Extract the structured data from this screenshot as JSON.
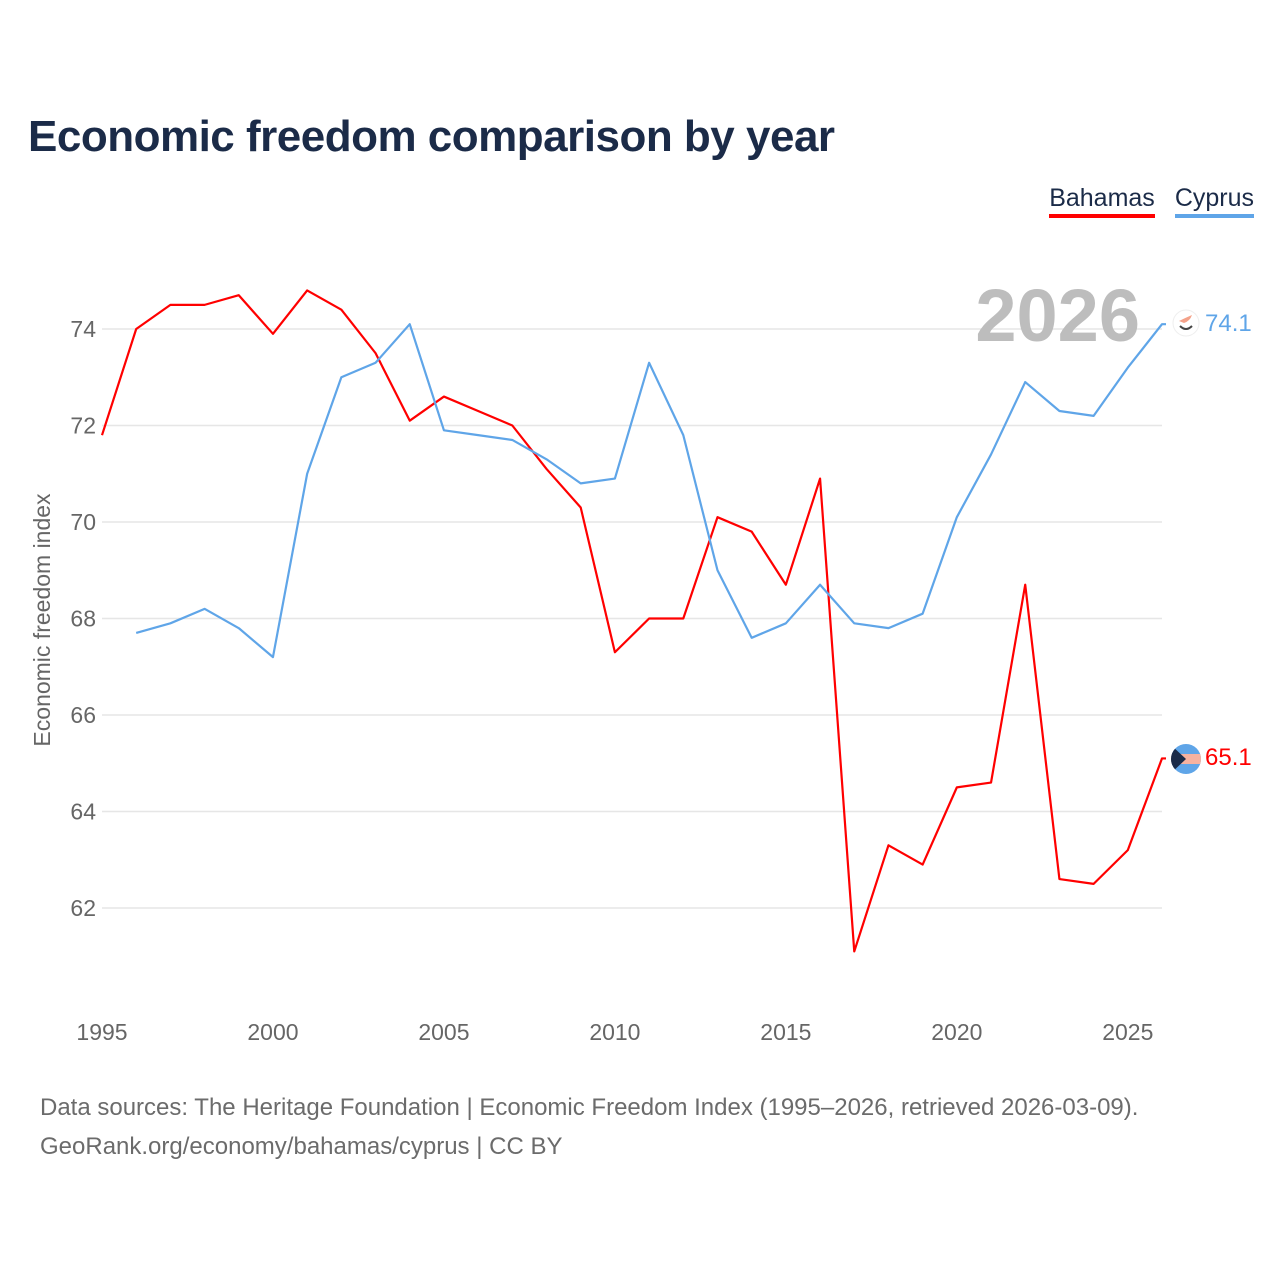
{
  "title": "Economic freedom comparison by year",
  "colors": {
    "Bahamas": "#ff0000",
    "Cyprus": "#5fa5e8"
  },
  "chart_data": {
    "type": "line",
    "title": "Economic freedom comparison by year",
    "xlabel": "",
    "ylabel": "Economic freedom index",
    "xlim": [
      1995,
      2026
    ],
    "ylim": [
      60.2,
      75.5
    ],
    "grid": true,
    "legend_placement": "top-right",
    "year_watermark": "2026",
    "x_ticks": [
      "1995",
      "2000",
      "2005",
      "2010",
      "2015",
      "2020",
      "2025"
    ],
    "y_ticks": [
      "62",
      "64",
      "66",
      "68",
      "70",
      "72",
      "74"
    ],
    "series": [
      {
        "name": "Bahamas",
        "end_label": "65.1",
        "x": [
          1995,
          1996,
          1997,
          1998,
          1999,
          2000,
          2001,
          2002,
          2003,
          2004,
          2005,
          2006,
          2007,
          2008,
          2009,
          2010,
          2011,
          2012,
          2013,
          2014,
          2015,
          2016,
          2017,
          2018,
          2019,
          2020,
          2021,
          2022,
          2023,
          2024,
          2025,
          2026
        ],
        "values": [
          71.8,
          74.0,
          74.5,
          74.5,
          74.7,
          73.9,
          74.8,
          74.4,
          73.5,
          72.1,
          72.6,
          72.3,
          72.0,
          71.1,
          70.3,
          67.3,
          68.0,
          68.0,
          70.1,
          69.8,
          68.7,
          70.9,
          61.1,
          63.3,
          62.9,
          64.5,
          64.6,
          68.7,
          62.6,
          62.5,
          63.2,
          65.1
        ]
      },
      {
        "name": "Cyprus",
        "end_label": "74.1",
        "x": [
          1996,
          1997,
          1998,
          1999,
          2000,
          2001,
          2002,
          2003,
          2004,
          2005,
          2006,
          2007,
          2008,
          2009,
          2010,
          2011,
          2012,
          2013,
          2014,
          2015,
          2016,
          2017,
          2018,
          2019,
          2020,
          2021,
          2022,
          2023,
          2024,
          2025,
          2026
        ],
        "values": [
          67.7,
          67.9,
          68.2,
          67.8,
          67.2,
          71.0,
          73.0,
          73.3,
          74.1,
          71.9,
          71.8,
          71.7,
          71.3,
          70.8,
          70.9,
          73.3,
          71.8,
          69.0,
          67.6,
          67.9,
          68.7,
          67.9,
          67.8,
          68.1,
          70.1,
          71.4,
          72.9,
          72.3,
          72.2,
          73.2,
          74.1
        ]
      }
    ]
  },
  "source_line1": "Data sources: The Heritage Foundation | Economic Freedom Index (1995–2026, retrieved 2026-03-09).",
  "source_line2": "GeoRank.org/economy/bahamas/cyprus | CC BY"
}
